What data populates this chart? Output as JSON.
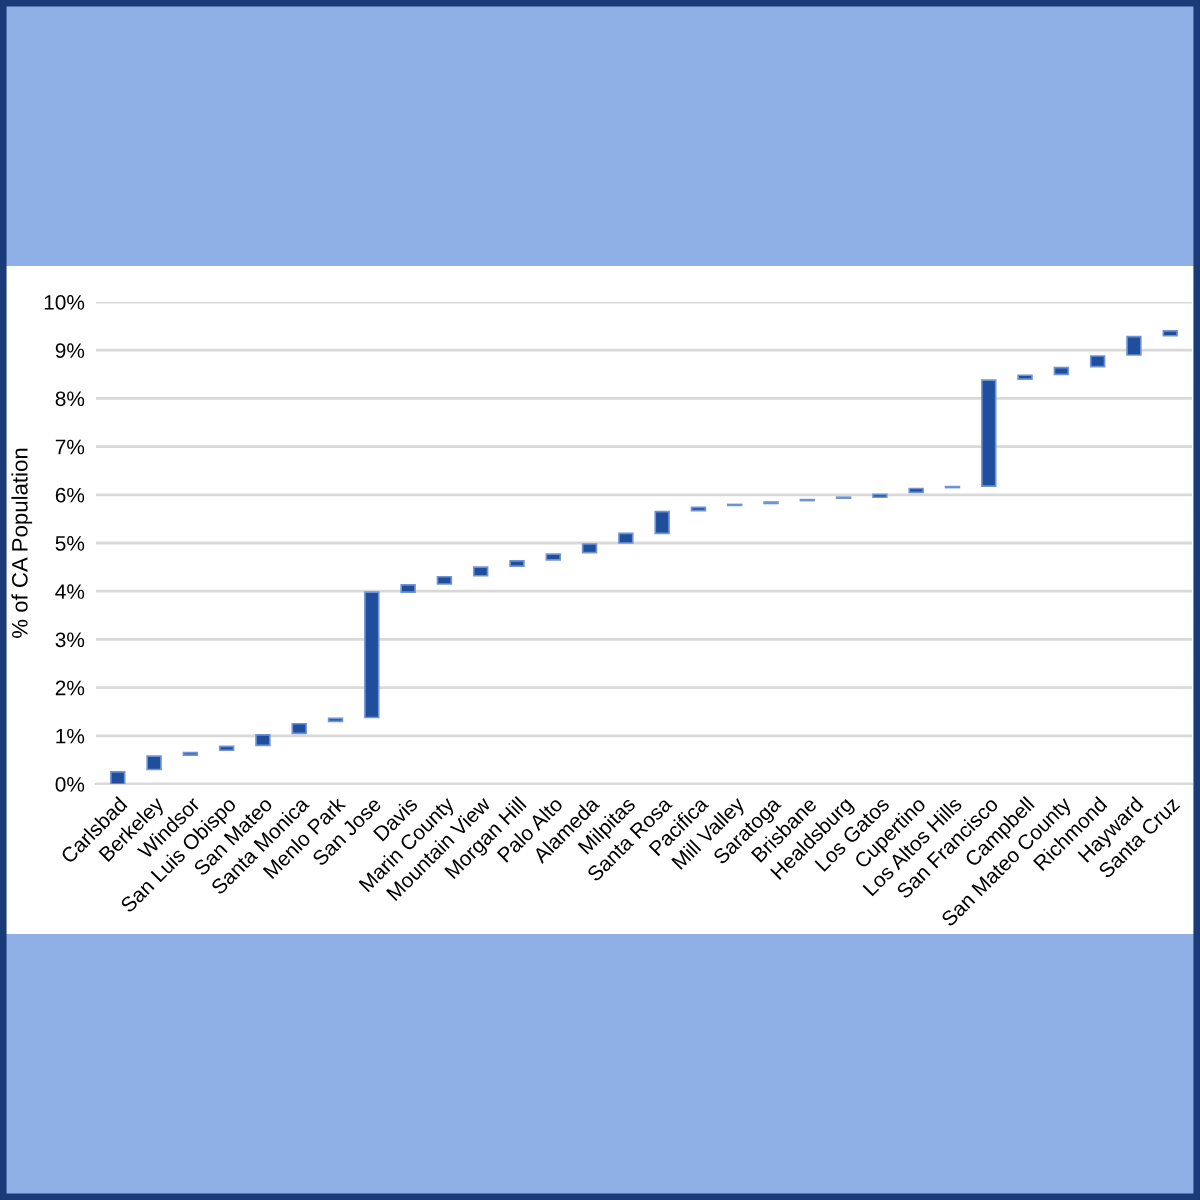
{
  "chart_data": {
    "type": "bar",
    "ylabel": "% of CA Population",
    "categories": [
      "Carlsbad",
      "Berkeley",
      "Windsor",
      "San Luis Obispo",
      "San Mateo",
      "Santa Monica",
      "Menlo Park",
      "San Jose",
      "Davis",
      "Marin County",
      "Mountain View",
      "Morgan Hill",
      "Palo Alto",
      "Alameda",
      "Milpitas",
      "Santa Rosa",
      "Pacifica",
      "Mill Valley",
      "Saratoga",
      "Brisbane",
      "Healdsburg",
      "Los Gatos",
      "Cupertino",
      "Los Altos Hills",
      "San Francisco",
      "Campbell",
      "San Mateo County",
      "Richmond",
      "Hayward",
      "Santa Cruz"
    ],
    "base": [
      0,
      0.3,
      0.6,
      0.7,
      0.8,
      1.05,
      1.3,
      1.38,
      3.98,
      4.15,
      4.32,
      4.52,
      4.65,
      4.8,
      5.0,
      5.2,
      5.67,
      5.78,
      5.82,
      5.88,
      5.93,
      5.95,
      6.05,
      6.15,
      6.18,
      8.4,
      8.5,
      8.66,
      8.9,
      9.3
    ],
    "values": [
      0.25,
      0.28,
      0.05,
      0.08,
      0.22,
      0.2,
      0.06,
      2.6,
      0.15,
      0.15,
      0.18,
      0.11,
      0.12,
      0.18,
      0.2,
      0.45,
      0.07,
      0.02,
      0.03,
      0.02,
      0.02,
      0.06,
      0.08,
      0.02,
      2.2,
      0.08,
      0.14,
      0.22,
      0.38,
      0.1
    ],
    "color": "#1f4e9c",
    "ylim": [
      0,
      10
    ],
    "yticks": [
      {
        "value": 0,
        "label": "0%"
      },
      {
        "value": 1,
        "label": "1%"
      },
      {
        "value": 2,
        "label": "2%"
      },
      {
        "value": 3,
        "label": "3%"
      },
      {
        "value": 4,
        "label": "4%"
      },
      {
        "value": 5,
        "label": "5%"
      },
      {
        "value": 6,
        "label": "6%"
      },
      {
        "value": 7,
        "label": "7%"
      },
      {
        "value": 8,
        "label": "8%"
      },
      {
        "value": 9,
        "label": "9%"
      },
      {
        "value": 10,
        "label": "10%"
      }
    ],
    "grid": "y"
  }
}
